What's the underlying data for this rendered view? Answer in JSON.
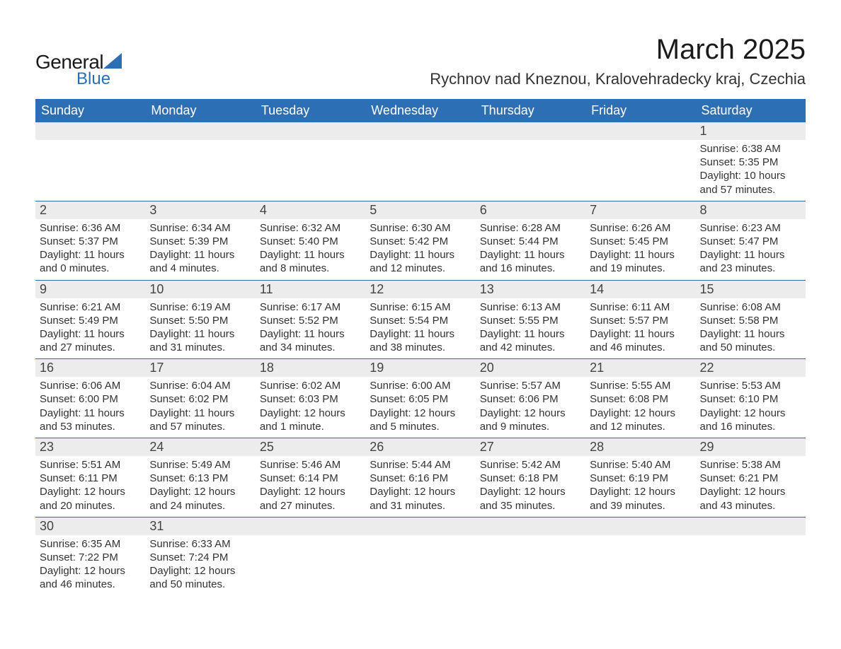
{
  "brand": {
    "text1": "General",
    "text2": "Blue",
    "accent_color": "#2d6fb5"
  },
  "title": "March 2025",
  "location": "Rychnov nad Kneznou, Kralovehradecky kraj, Czechia",
  "header_bg": "#2d6fb5",
  "row_divider": "#2d6fb5",
  "daynum_bg": "#ececec",
  "text_color": "#333333",
  "weekdays": [
    "Sunday",
    "Monday",
    "Tuesday",
    "Wednesday",
    "Thursday",
    "Friday",
    "Saturday"
  ],
  "weeks": [
    [
      null,
      null,
      null,
      null,
      null,
      null,
      {
        "n": "1",
        "sunrise": "Sunrise: 6:38 AM",
        "sunset": "Sunset: 5:35 PM",
        "dl1": "Daylight: 10 hours",
        "dl2": "and 57 minutes."
      }
    ],
    [
      {
        "n": "2",
        "sunrise": "Sunrise: 6:36 AM",
        "sunset": "Sunset: 5:37 PM",
        "dl1": "Daylight: 11 hours",
        "dl2": "and 0 minutes."
      },
      {
        "n": "3",
        "sunrise": "Sunrise: 6:34 AM",
        "sunset": "Sunset: 5:39 PM",
        "dl1": "Daylight: 11 hours",
        "dl2": "and 4 minutes."
      },
      {
        "n": "4",
        "sunrise": "Sunrise: 6:32 AM",
        "sunset": "Sunset: 5:40 PM",
        "dl1": "Daylight: 11 hours",
        "dl2": "and 8 minutes."
      },
      {
        "n": "5",
        "sunrise": "Sunrise: 6:30 AM",
        "sunset": "Sunset: 5:42 PM",
        "dl1": "Daylight: 11 hours",
        "dl2": "and 12 minutes."
      },
      {
        "n": "6",
        "sunrise": "Sunrise: 6:28 AM",
        "sunset": "Sunset: 5:44 PM",
        "dl1": "Daylight: 11 hours",
        "dl2": "and 16 minutes."
      },
      {
        "n": "7",
        "sunrise": "Sunrise: 6:26 AM",
        "sunset": "Sunset: 5:45 PM",
        "dl1": "Daylight: 11 hours",
        "dl2": "and 19 minutes."
      },
      {
        "n": "8",
        "sunrise": "Sunrise: 6:23 AM",
        "sunset": "Sunset: 5:47 PM",
        "dl1": "Daylight: 11 hours",
        "dl2": "and 23 minutes."
      }
    ],
    [
      {
        "n": "9",
        "sunrise": "Sunrise: 6:21 AM",
        "sunset": "Sunset: 5:49 PM",
        "dl1": "Daylight: 11 hours",
        "dl2": "and 27 minutes."
      },
      {
        "n": "10",
        "sunrise": "Sunrise: 6:19 AM",
        "sunset": "Sunset: 5:50 PM",
        "dl1": "Daylight: 11 hours",
        "dl2": "and 31 minutes."
      },
      {
        "n": "11",
        "sunrise": "Sunrise: 6:17 AM",
        "sunset": "Sunset: 5:52 PM",
        "dl1": "Daylight: 11 hours",
        "dl2": "and 34 minutes."
      },
      {
        "n": "12",
        "sunrise": "Sunrise: 6:15 AM",
        "sunset": "Sunset: 5:54 PM",
        "dl1": "Daylight: 11 hours",
        "dl2": "and 38 minutes."
      },
      {
        "n": "13",
        "sunrise": "Sunrise: 6:13 AM",
        "sunset": "Sunset: 5:55 PM",
        "dl1": "Daylight: 11 hours",
        "dl2": "and 42 minutes."
      },
      {
        "n": "14",
        "sunrise": "Sunrise: 6:11 AM",
        "sunset": "Sunset: 5:57 PM",
        "dl1": "Daylight: 11 hours",
        "dl2": "and 46 minutes."
      },
      {
        "n": "15",
        "sunrise": "Sunrise: 6:08 AM",
        "sunset": "Sunset: 5:58 PM",
        "dl1": "Daylight: 11 hours",
        "dl2": "and 50 minutes."
      }
    ],
    [
      {
        "n": "16",
        "sunrise": "Sunrise: 6:06 AM",
        "sunset": "Sunset: 6:00 PM",
        "dl1": "Daylight: 11 hours",
        "dl2": "and 53 minutes."
      },
      {
        "n": "17",
        "sunrise": "Sunrise: 6:04 AM",
        "sunset": "Sunset: 6:02 PM",
        "dl1": "Daylight: 11 hours",
        "dl2": "and 57 minutes."
      },
      {
        "n": "18",
        "sunrise": "Sunrise: 6:02 AM",
        "sunset": "Sunset: 6:03 PM",
        "dl1": "Daylight: 12 hours",
        "dl2": "and 1 minute."
      },
      {
        "n": "19",
        "sunrise": "Sunrise: 6:00 AM",
        "sunset": "Sunset: 6:05 PM",
        "dl1": "Daylight: 12 hours",
        "dl2": "and 5 minutes."
      },
      {
        "n": "20",
        "sunrise": "Sunrise: 5:57 AM",
        "sunset": "Sunset: 6:06 PM",
        "dl1": "Daylight: 12 hours",
        "dl2": "and 9 minutes."
      },
      {
        "n": "21",
        "sunrise": "Sunrise: 5:55 AM",
        "sunset": "Sunset: 6:08 PM",
        "dl1": "Daylight: 12 hours",
        "dl2": "and 12 minutes."
      },
      {
        "n": "22",
        "sunrise": "Sunrise: 5:53 AM",
        "sunset": "Sunset: 6:10 PM",
        "dl1": "Daylight: 12 hours",
        "dl2": "and 16 minutes."
      }
    ],
    [
      {
        "n": "23",
        "sunrise": "Sunrise: 5:51 AM",
        "sunset": "Sunset: 6:11 PM",
        "dl1": "Daylight: 12 hours",
        "dl2": "and 20 minutes."
      },
      {
        "n": "24",
        "sunrise": "Sunrise: 5:49 AM",
        "sunset": "Sunset: 6:13 PM",
        "dl1": "Daylight: 12 hours",
        "dl2": "and 24 minutes."
      },
      {
        "n": "25",
        "sunrise": "Sunrise: 5:46 AM",
        "sunset": "Sunset: 6:14 PM",
        "dl1": "Daylight: 12 hours",
        "dl2": "and 27 minutes."
      },
      {
        "n": "26",
        "sunrise": "Sunrise: 5:44 AM",
        "sunset": "Sunset: 6:16 PM",
        "dl1": "Daylight: 12 hours",
        "dl2": "and 31 minutes."
      },
      {
        "n": "27",
        "sunrise": "Sunrise: 5:42 AM",
        "sunset": "Sunset: 6:18 PM",
        "dl1": "Daylight: 12 hours",
        "dl2": "and 35 minutes."
      },
      {
        "n": "28",
        "sunrise": "Sunrise: 5:40 AM",
        "sunset": "Sunset: 6:19 PM",
        "dl1": "Daylight: 12 hours",
        "dl2": "and 39 minutes."
      },
      {
        "n": "29",
        "sunrise": "Sunrise: 5:38 AM",
        "sunset": "Sunset: 6:21 PM",
        "dl1": "Daylight: 12 hours",
        "dl2": "and 43 minutes."
      }
    ],
    [
      {
        "n": "30",
        "sunrise": "Sunrise: 6:35 AM",
        "sunset": "Sunset: 7:22 PM",
        "dl1": "Daylight: 12 hours",
        "dl2": "and 46 minutes."
      },
      {
        "n": "31",
        "sunrise": "Sunrise: 6:33 AM",
        "sunset": "Sunset: 7:24 PM",
        "dl1": "Daylight: 12 hours",
        "dl2": "and 50 minutes."
      },
      null,
      null,
      null,
      null,
      null
    ]
  ]
}
